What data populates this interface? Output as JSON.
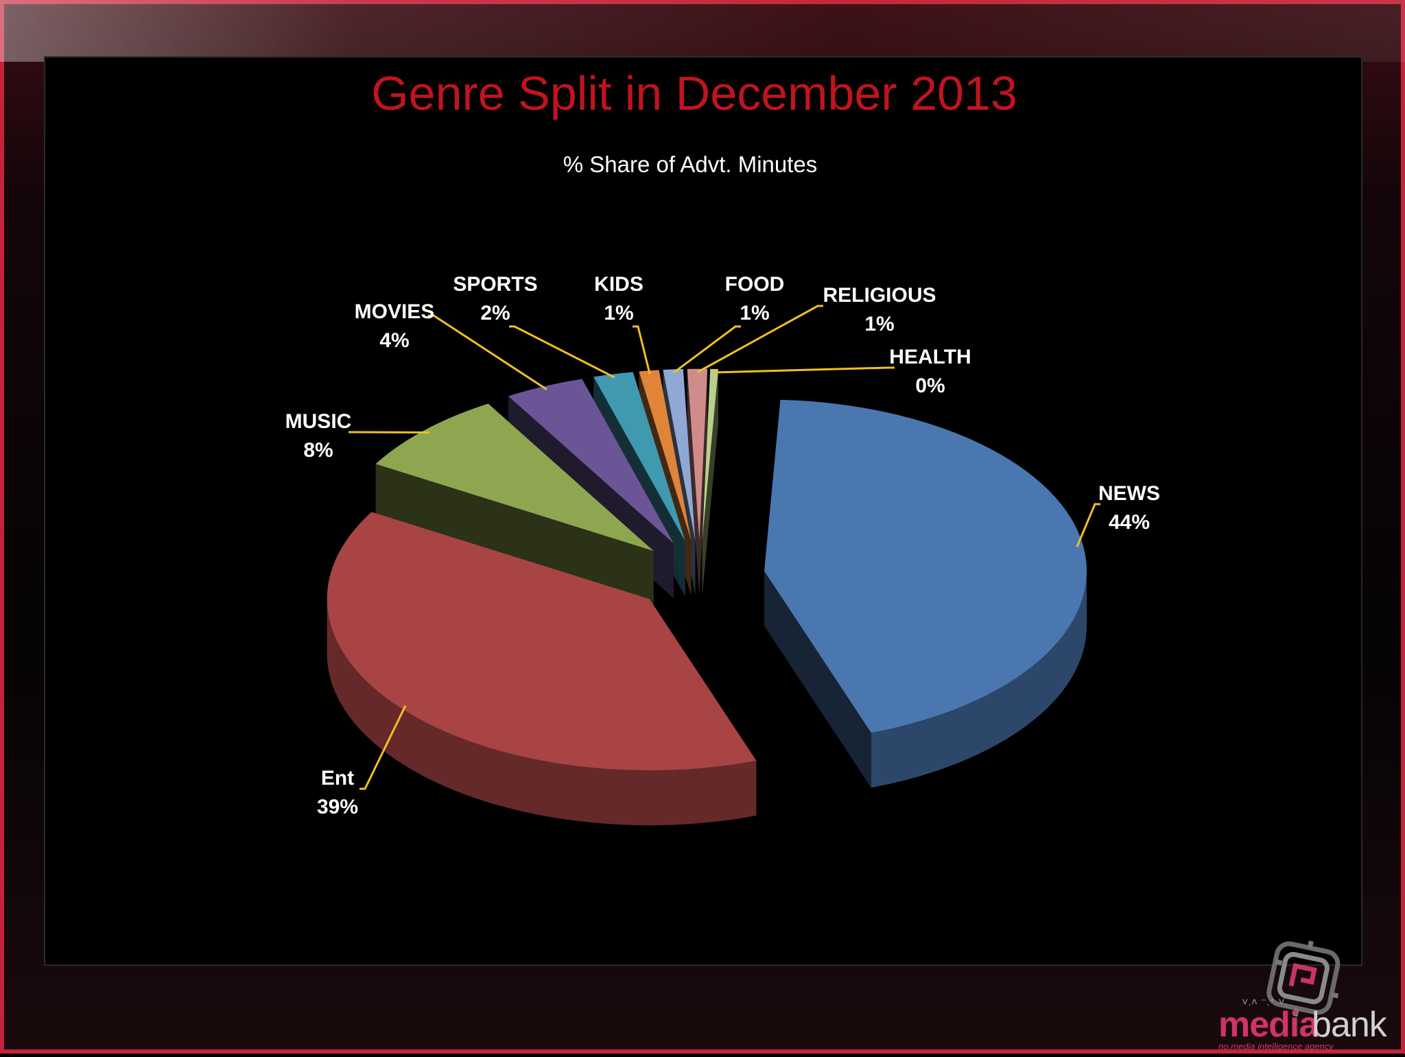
{
  "chart_data": {
    "type": "pie",
    "title": "Genre Split in December 2013",
    "subtitle": "% Share of Advt. Minutes",
    "slices": [
      {
        "label": "NEWS",
        "value": 44,
        "display": "44%",
        "color": "#4a77b0"
      },
      {
        "label": "Ent",
        "value": 39,
        "display": "39%",
        "color": "#a94444"
      },
      {
        "label": "MUSIC",
        "value": 8,
        "display": "8%",
        "color": "#8fa650"
      },
      {
        "label": "MOVIES",
        "value": 4,
        "display": "4%",
        "color": "#6b5596"
      },
      {
        "label": "SPORTS",
        "value": 2,
        "display": "2%",
        "color": "#3f9ab0"
      },
      {
        "label": "KIDS",
        "value": 1,
        "display": "1%",
        "color": "#e0843a"
      },
      {
        "label": "FOOD",
        "value": 1,
        "display": "1%",
        "color": "#90a8d4"
      },
      {
        "label": "RELIGIOUS",
        "value": 1,
        "display": "1%",
        "color": "#d08c8a"
      },
      {
        "label": "HEALTH",
        "value": 0.4,
        "display": "0%",
        "color": "#b8d08c"
      }
    ],
    "legend": "none",
    "label_style": "callout",
    "title_color": "#c0141e",
    "leader_color": "#f0c020"
  },
  "brand": {
    "name_part1": "media",
    "name_part2": "bank",
    "tagline": "no.media intelligence agency"
  }
}
